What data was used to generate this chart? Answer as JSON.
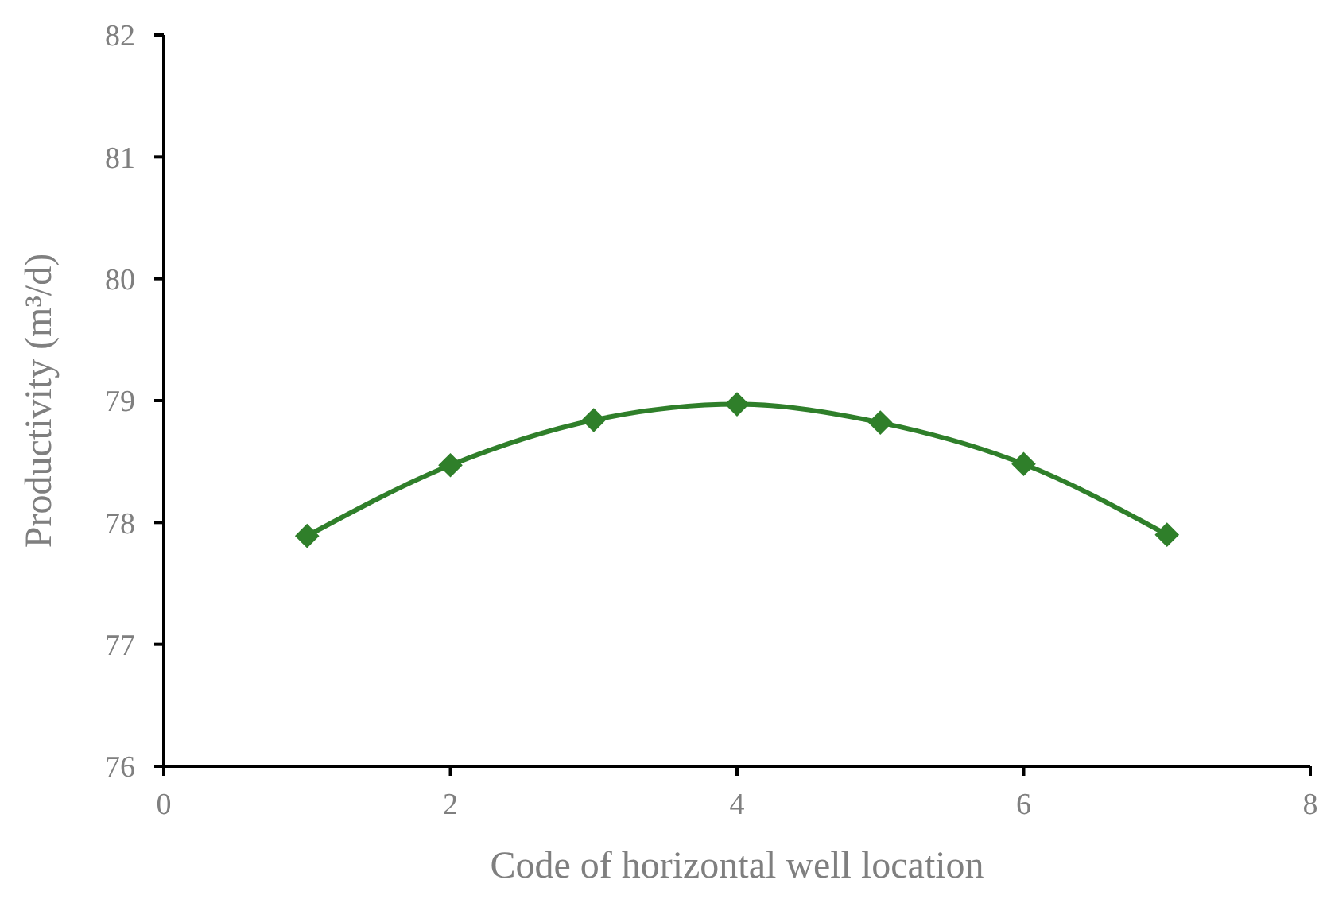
{
  "chart_data": {
    "type": "line",
    "xlabel": "Code of horizontal well location",
    "ylabel": "Productivity (m³/d)",
    "x": [
      1,
      2,
      3,
      4,
      5,
      6,
      7
    ],
    "series": [
      {
        "color": "#2f7f2a",
        "values": [
          77.89,
          78.47,
          78.84,
          78.97,
          78.82,
          78.48,
          77.9
        ]
      }
    ],
    "xlim": [
      0,
      8
    ],
    "xticks": [
      0,
      2,
      4,
      6,
      8
    ],
    "ylim": [
      76,
      82
    ],
    "yticks": [
      76,
      77,
      78,
      79,
      80,
      81,
      82
    ],
    "marker": "diamond",
    "line_style": "solid"
  }
}
